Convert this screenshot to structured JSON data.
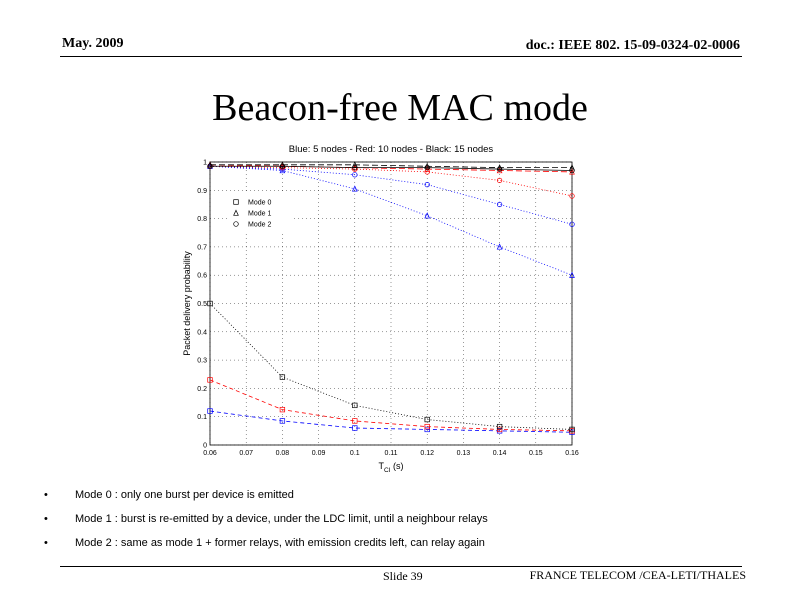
{
  "header": {
    "date": "May. 2009",
    "doc_id": "doc.: IEEE 802. 15-09-0324-02-0006"
  },
  "slide_title": "Beacon-free MAC mode",
  "chart_data": {
    "type": "line",
    "title": "Blue: 5 nodes - Red: 10 nodes - Black: 15 nodes",
    "xlabel": "T",
    "xlabel_sub": "CI",
    "xlabel_unit": " (s)",
    "ylabel": "Packet delivery probability",
    "xlim": [
      0.06,
      0.16
    ],
    "ylim": [
      0,
      1
    ],
    "xticks": [
      "0.06",
      "0.07",
      "0.08",
      "0.09",
      "0.1",
      "0.11",
      "0.12",
      "0.13",
      "0.14",
      "0.15",
      "0.16"
    ],
    "yticks": [
      "0",
      "0.1",
      "0.2",
      "0.3",
      "0.4",
      "0.5",
      "0.6",
      "0.7",
      "0.8",
      "0.9",
      "1"
    ],
    "grid": true,
    "legend_position": "upper-left",
    "legend": [
      {
        "label": "Mode 0",
        "marker": "square"
      },
      {
        "label": "Mode 1",
        "marker": "triangle"
      },
      {
        "label": "Mode 2",
        "marker": "circle"
      }
    ],
    "x": [
      0.06,
      0.08,
      0.1,
      0.12,
      0.14,
      0.16
    ],
    "series": [
      {
        "group": "5 nodes",
        "mode": "Mode 0",
        "color": "#0000ff",
        "dash": "4,3",
        "marker": "square",
        "values": [
          0.12,
          0.085,
          0.06,
          0.055,
          0.05,
          0.045
        ]
      },
      {
        "group": "5 nodes",
        "mode": "Mode 1",
        "color": "#0000ff",
        "dash": "1,2",
        "marker": "triangle",
        "values": [
          0.985,
          0.97,
          0.905,
          0.81,
          0.7,
          0.6
        ]
      },
      {
        "group": "5 nodes",
        "mode": "Mode 2",
        "color": "#0000ff",
        "dash": "1,2",
        "marker": "circle",
        "values": [
          0.985,
          0.975,
          0.955,
          0.92,
          0.85,
          0.78
        ]
      },
      {
        "group": "10 nodes",
        "mode": "Mode 0",
        "color": "#ff0000",
        "dash": "4,3",
        "marker": "square",
        "values": [
          0.23,
          0.125,
          0.085,
          0.065,
          0.055,
          0.05
        ]
      },
      {
        "group": "10 nodes",
        "mode": "Mode 1",
        "color": "#ff0000",
        "dash": "6,3",
        "marker": "triangle",
        "values": [
          0.99,
          0.985,
          0.98,
          0.975,
          0.97,
          0.965
        ]
      },
      {
        "group": "10 nodes",
        "mode": "Mode 2",
        "color": "#ff0000",
        "dash": "1,2",
        "marker": "circle",
        "values": [
          0.985,
          0.98,
          0.975,
          0.965,
          0.935,
          0.88
        ]
      },
      {
        "group": "15 nodes",
        "mode": "Mode 0",
        "color": "#000000",
        "dash": "1,2",
        "marker": "square",
        "values": [
          0.5,
          0.24,
          0.14,
          0.09,
          0.065,
          0.055
        ]
      },
      {
        "group": "15 nodes",
        "mode": "Mode 1",
        "color": "#000000",
        "dash": "6,3",
        "marker": "triangle",
        "values": [
          0.99,
          0.99,
          0.99,
          0.985,
          0.98,
          0.98
        ]
      },
      {
        "group": "15 nodes",
        "mode": "Mode 2",
        "color": "#000000",
        "dash": "",
        "marker": "circle",
        "values": [
          0.985,
          0.985,
          0.98,
          0.98,
          0.975,
          0.97
        ]
      }
    ]
  },
  "bullets": [
    "Mode 0 : only one burst per device is emitted",
    "Mode 1 : burst is re-emitted by a device, under the LDC limit, until a neighbour relays",
    "Mode 2 : same as mode 1 + former relays, with emission credits left, can relay again"
  ],
  "footer": {
    "slide": "Slide 39",
    "org": "FRANCE TELECOM /CEA-LETI/THALES"
  }
}
